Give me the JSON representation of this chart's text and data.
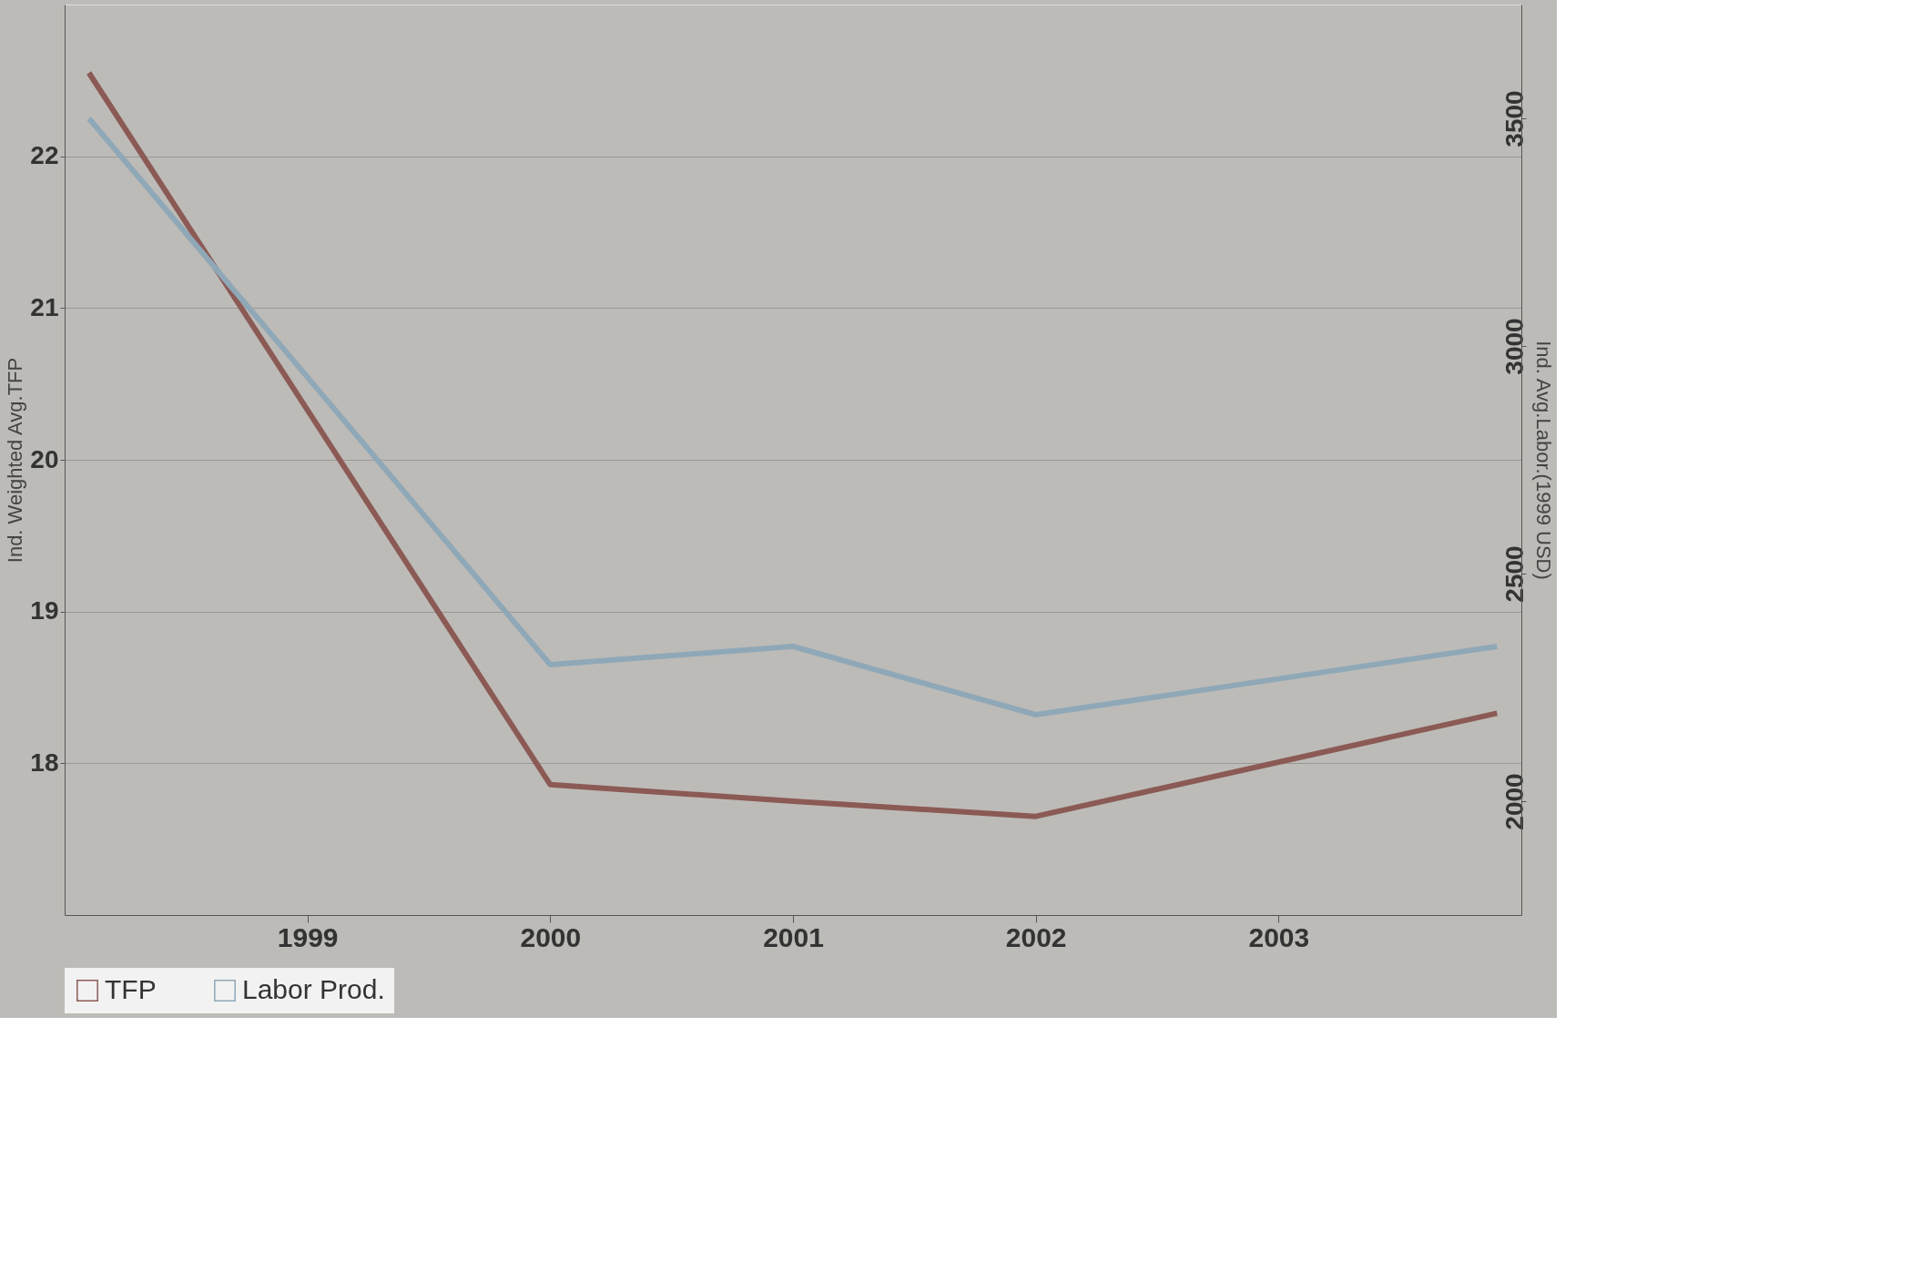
{
  "chart_data": {
    "type": "line",
    "ylabel": "Ind. Weighted Avg.TFP",
    "y2label": "Ind. Avg.Labor.(1999 USD)",
    "xlim": [
      1998,
      2004
    ],
    "xticks": [
      1999,
      2000,
      2001,
      2002,
      2003
    ],
    "ylim": [
      17,
      23
    ],
    "yticks": [
      18,
      19,
      20,
      21,
      22
    ],
    "y2lim": [
      1750,
      3750
    ],
    "y2ticks": [
      2000,
      2500,
      3000,
      3500
    ],
    "grid": "y",
    "legend": "bottom",
    "line_style": "solid",
    "marker": "none",
    "series": [
      {
        "name": "TFP",
        "color": "#8b5a55",
        "x": [
          1998.1,
          2000,
          2001,
          2002,
          2003.9
        ],
        "values": [
          22.55,
          17.86,
          17.75,
          17.65,
          18.33
        ]
      },
      {
        "name": "Labor Prod.",
        "color": "#8fa8b8",
        "axis": "y2",
        "x": [
          1998.1,
          2000,
          2001,
          2002,
          2003.9
        ],
        "values": [
          3500,
          2300,
          2340,
          2190,
          2340
        ]
      }
    ]
  }
}
